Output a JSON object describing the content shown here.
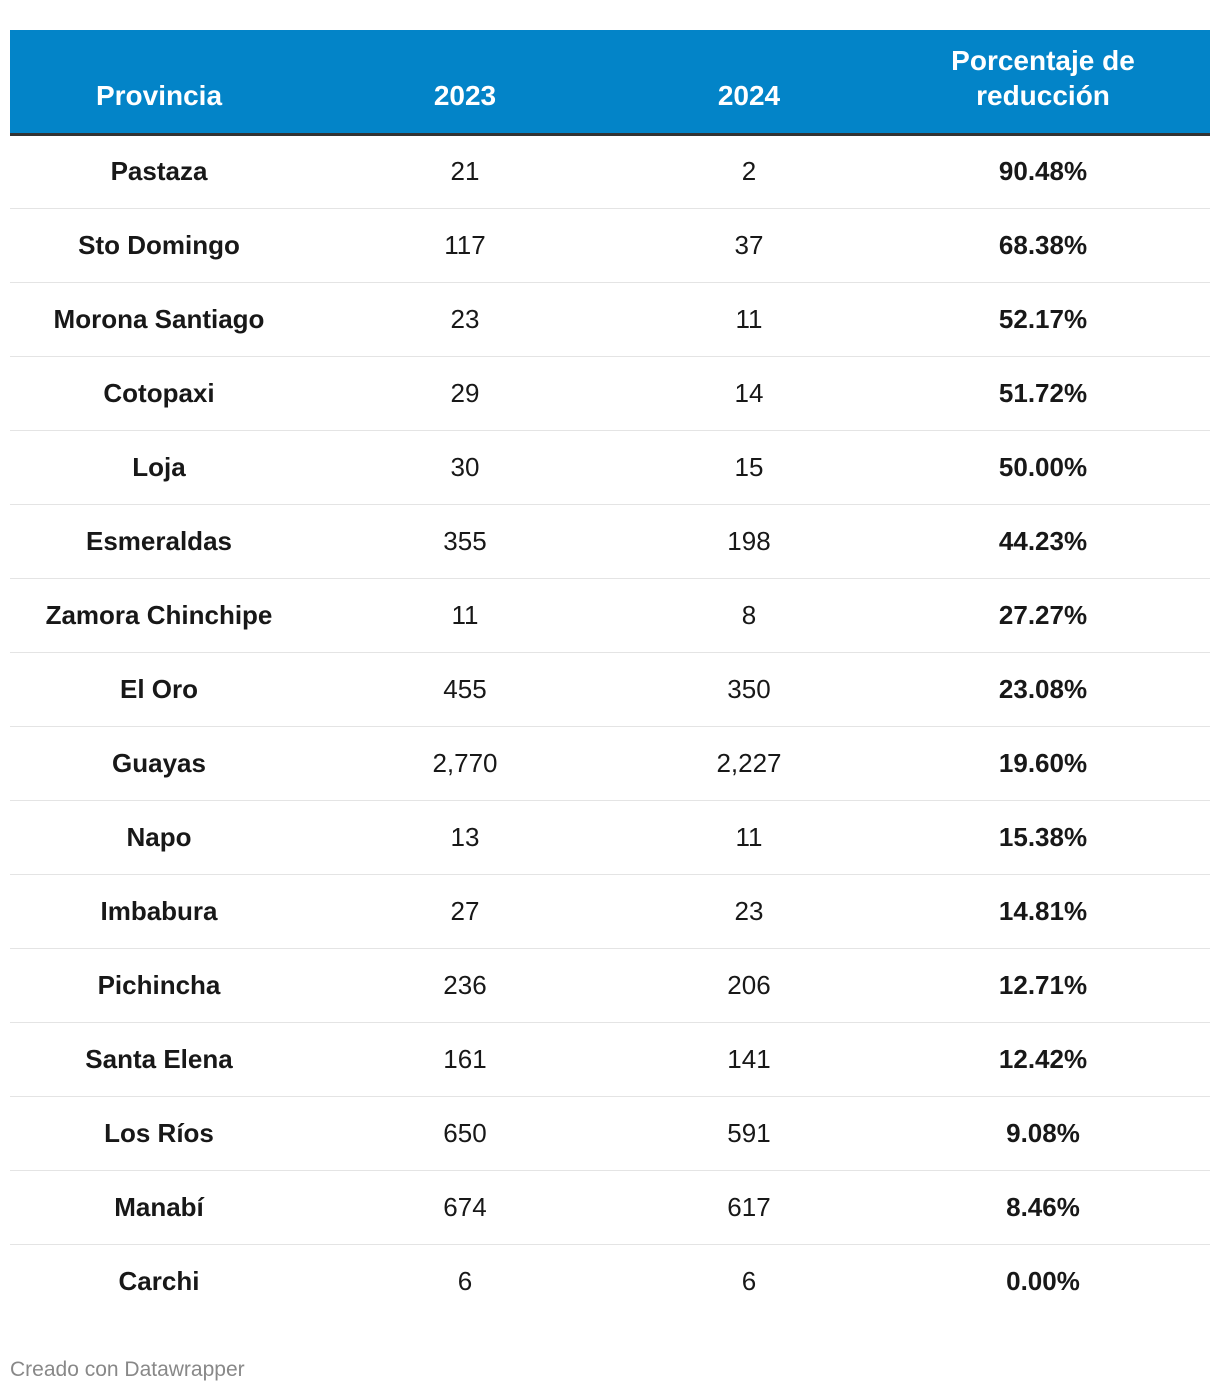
{
  "chart_data": {
    "type": "table",
    "columns": [
      "Provincia",
      "2023",
      "2024",
      "Porcentaje de reducción"
    ],
    "rows": [
      {
        "provincia": "Pastaza",
        "y2023": "21",
        "y2024": "2",
        "reduccion": "90.48%"
      },
      {
        "provincia": "Sto Domingo",
        "y2023": "117",
        "y2024": "37",
        "reduccion": "68.38%"
      },
      {
        "provincia": "Morona Santiago",
        "y2023": "23",
        "y2024": "11",
        "reduccion": "52.17%"
      },
      {
        "provincia": "Cotopaxi",
        "y2023": "29",
        "y2024": "14",
        "reduccion": "51.72%"
      },
      {
        "provincia": "Loja",
        "y2023": "30",
        "y2024": "15",
        "reduccion": "50.00%"
      },
      {
        "provincia": "Esmeraldas",
        "y2023": "355",
        "y2024": "198",
        "reduccion": "44.23%"
      },
      {
        "provincia": "Zamora Chinchipe",
        "y2023": "11",
        "y2024": "8",
        "reduccion": "27.27%"
      },
      {
        "provincia": "El Oro",
        "y2023": "455",
        "y2024": "350",
        "reduccion": "23.08%"
      },
      {
        "provincia": "Guayas",
        "y2023": "2,770",
        "y2024": "2,227",
        "reduccion": "19.60%"
      },
      {
        "provincia": "Napo",
        "y2023": "13",
        "y2024": "11",
        "reduccion": "15.38%"
      },
      {
        "provincia": "Imbabura",
        "y2023": "27",
        "y2024": "23",
        "reduccion": "14.81%"
      },
      {
        "provincia": "Pichincha",
        "y2023": "236",
        "y2024": "206",
        "reduccion": "12.71%"
      },
      {
        "provincia": "Santa Elena",
        "y2023": "161",
        "y2024": "141",
        "reduccion": "12.42%"
      },
      {
        "provincia": "Los Ríos",
        "y2023": "650",
        "y2024": "591",
        "reduccion": "9.08%"
      },
      {
        "provincia": "Manabí",
        "y2023": "674",
        "y2024": "617",
        "reduccion": "8.46%"
      },
      {
        "provincia": "Carchi",
        "y2023": "6",
        "y2024": "6",
        "reduccion": "0.00%"
      }
    ]
  },
  "footer": {
    "credit": "Creado con Datawrapper"
  },
  "colors": {
    "header_bg": "#0384c8",
    "header_text": "#ffffff",
    "header_border": "#333333",
    "row_divider": "#e4e4e4",
    "credit_text": "#888888"
  }
}
